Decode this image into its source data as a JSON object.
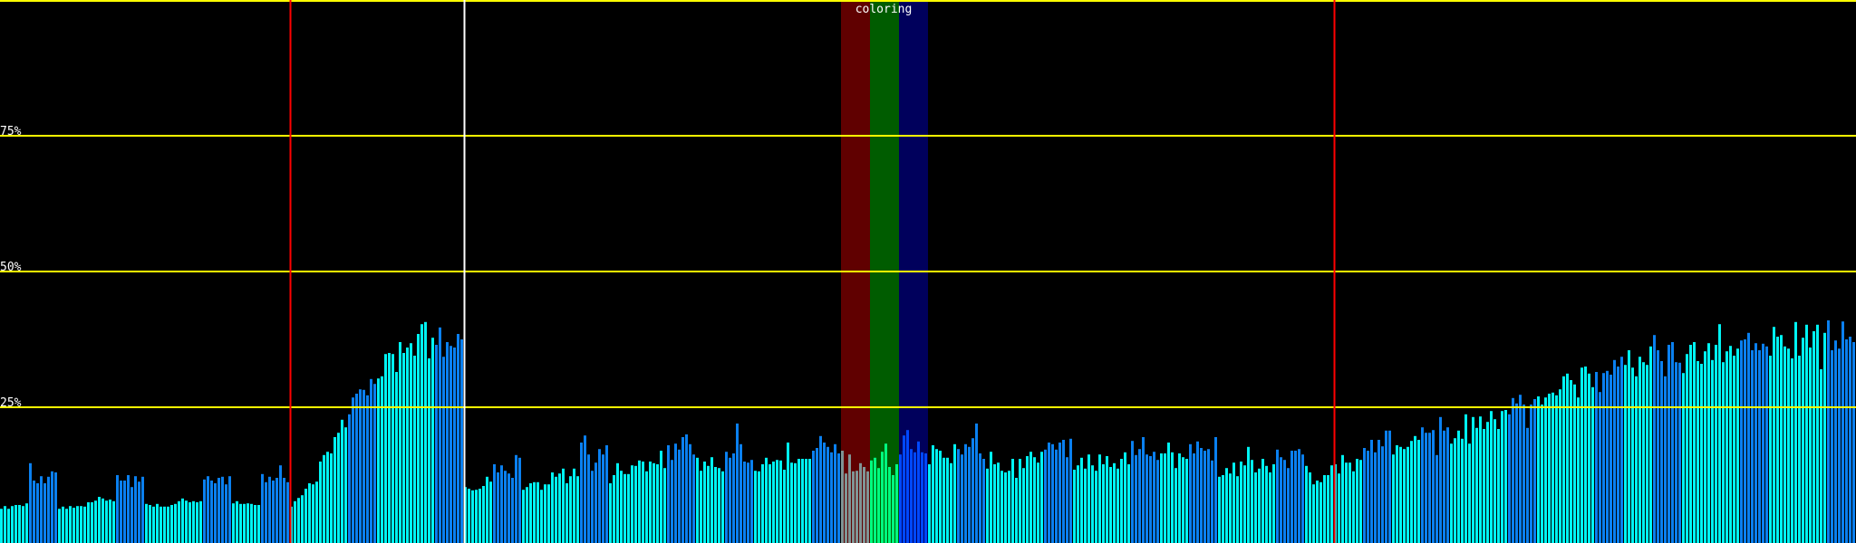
{
  "chart_data": {
    "type": "bar",
    "ylim": [
      0,
      100
    ],
    "y_tick_labels": [
      "25%",
      "50%",
      "75%"
    ],
    "y_ticks": [
      25,
      50,
      75
    ],
    "grid": true,
    "band_label": "coloring",
    "group_size": 8,
    "group_colors": "cbccbccbcbccbccbcbccbccbcbccbgGBcbccbccbcbccbccbcbccbccbcbccbccb",
    "palette": {
      "c": "#00f4f4",
      "b": "#0a80f0",
      "g": "#7f9595",
      "G": "#00ff80",
      "B": "#0048ff",
      "band_red": "#600000",
      "band_green": "#005c00",
      "band_blue": "#00005c",
      "grid": "#ffff00",
      "marker_red": "#ff0000",
      "marker_white": "#ffffff"
    },
    "values": [
      6.3,
      6.8,
      6.3,
      6.8,
      7.0,
      7.0,
      6.8,
      7.3,
      14.7,
      11.5,
      11.0,
      12.3,
      11.0,
      12.2,
      13.2,
      13.0,
      6.3,
      6.7,
      6.3,
      6.8,
      6.5,
      6.8,
      6.8,
      6.7,
      7.5,
      7.5,
      7.8,
      8.5,
      8.2,
      7.8,
      8.0,
      7.7,
      12.5,
      11.5,
      11.5,
      12.5,
      10.3,
      12.3,
      11.3,
      12.2,
      7.2,
      7.0,
      6.7,
      7.2,
      6.7,
      6.7,
      6.7,
      7.0,
      7.2,
      7.7,
      8.2,
      7.8,
      7.5,
      7.7,
      7.5,
      7.7,
      11.7,
      12.3,
      11.5,
      11.0,
      12.0,
      12.2,
      10.8,
      12.3,
      7.3,
      7.7,
      7.2,
      7.2,
      7.3,
      7.2,
      7.0,
      7.0,
      12.7,
      11.2,
      12.2,
      11.5,
      12.0,
      14.3,
      12.0,
      11.2,
      6.7,
      7.7,
      8.3,
      8.8,
      10.0,
      11.0,
      10.8,
      11.3,
      15.0,
      16.2,
      16.8,
      16.5,
      19.5,
      20.3,
      22.7,
      21.3,
      23.7,
      26.8,
      27.5,
      28.3,
      28.2,
      27.2,
      30.2,
      29.3,
      30.3,
      30.7,
      34.8,
      35.0,
      34.8,
      31.5,
      37.0,
      35.0,
      36.0,
      36.8,
      34.5,
      38.5,
      40.3,
      40.7,
      34.0,
      37.8,
      36.5,
      39.7,
      34.3,
      37.0,
      36.3,
      36.0,
      38.5,
      37.5,
      10.3,
      10.0,
      9.7,
      9.8,
      10.0,
      10.5,
      12.2,
      11.3,
      14.5,
      13.0,
      14.3,
      13.3,
      12.8,
      12.0,
      16.2,
      15.7,
      9.8,
      10.3,
      11.0,
      11.2,
      11.2,
      9.8,
      10.8,
      10.8,
      13.0,
      12.2,
      12.8,
      13.7,
      11.0,
      12.3,
      13.7,
      12.3,
      18.5,
      19.8,
      16.3,
      13.3,
      14.8,
      17.3,
      16.3,
      18.0,
      11.0,
      12.5,
      14.7,
      13.3,
      12.7,
      12.7,
      14.3,
      14.2,
      15.2,
      15.0,
      13.2,
      15.0,
      14.7,
      14.5,
      17.0,
      13.8,
      18.0,
      15.3,
      18.3,
      17.2,
      19.5,
      20.0,
      18.2,
      16.3,
      15.7,
      13.3,
      15.0,
      14.2,
      15.8,
      14.0,
      13.8,
      13.2,
      16.8,
      15.7,
      16.5,
      22.0,
      18.2,
      15.0,
      14.8,
      15.3,
      13.3,
      13.2,
      14.5,
      15.7,
      14.5,
      15.0,
      15.3,
      15.2,
      13.5,
      18.5,
      14.8,
      14.7,
      15.5,
      15.5,
      15.5,
      15.5,
      17.0,
      17.5,
      19.7,
      18.5,
      17.7,
      16.7,
      18.2,
      16.5,
      17.0,
      12.8,
      16.3,
      13.2,
      13.3,
      14.7,
      14.0,
      13.2,
      15.2,
      15.7,
      13.8,
      16.8,
      18.3,
      14.0,
      12.5,
      14.5,
      16.3,
      19.8,
      20.8,
      17.3,
      16.7,
      18.7,
      16.7,
      16.5,
      14.5,
      18.0,
      17.3,
      17.0,
      15.7,
      15.7,
      14.7,
      18.2,
      17.3,
      16.3,
      18.2,
      17.7,
      19.3,
      22.0,
      16.5,
      15.5,
      13.7,
      16.8,
      14.5,
      14.8,
      13.3,
      13.0,
      13.3,
      15.5,
      12.0,
      15.5,
      13.8,
      16.0,
      16.8,
      15.8,
      14.8,
      16.8,
      17.2,
      18.5,
      18.2,
      17.2,
      18.5,
      19.0,
      15.8,
      19.2,
      13.5,
      14.3,
      15.7,
      13.7,
      16.3,
      14.3,
      13.3,
      16.3,
      14.5,
      16.0,
      14.0,
      14.7,
      13.7,
      15.5,
      16.7,
      14.5,
      18.8,
      16.2,
      17.3,
      19.5,
      16.3,
      16.0,
      16.8,
      15.3,
      16.5,
      16.5,
      18.5,
      16.7,
      13.8,
      16.5,
      15.8,
      15.5,
      18.2,
      16.5,
      18.7,
      17.5,
      17.0,
      17.3,
      15.2,
      19.5,
      12.2,
      12.5,
      13.8,
      12.8,
      14.8,
      12.3,
      15.0,
      14.3,
      17.7,
      15.3,
      13.0,
      13.7,
      15.5,
      14.2,
      13.0,
      14.5,
      17.2,
      15.8,
      15.3,
      13.8,
      17.0,
      17.0,
      17.3,
      16.3,
      14.2,
      13.0,
      10.8,
      11.5,
      11.2,
      12.5,
      12.5,
      14.3,
      14.5,
      12.8,
      16.2,
      14.8,
      14.8,
      13.2,
      15.5,
      15.3,
      17.5,
      17.0,
      19.0,
      16.7,
      19.0,
      17.8,
      20.7,
      20.7,
      16.3,
      18.0,
      17.7,
      17.3,
      17.7,
      18.8,
      19.7,
      19.0,
      21.3,
      20.3,
      20.3,
      20.8,
      16.2,
      23.2,
      20.7,
      21.3,
      18.3,
      19.3,
      20.7,
      19.2,
      23.7,
      18.3,
      23.2,
      21.2,
      23.3,
      21.0,
      22.3,
      24.3,
      22.8,
      21.0,
      24.3,
      24.5,
      23.7,
      26.7,
      25.7,
      27.3,
      25.5,
      21.2,
      25.5,
      26.5,
      27.0,
      25.5,
      26.8,
      27.5,
      27.7,
      27.2,
      28.3,
      30.7,
      31.2,
      30.0,
      29.2,
      26.8,
      32.3,
      32.5,
      31.2,
      28.7,
      31.5,
      27.8,
      31.3,
      31.7,
      31.0,
      33.7,
      32.5,
      34.3,
      32.8,
      35.5,
      32.3,
      30.7,
      34.3,
      33.3,
      32.8,
      36.2,
      38.3,
      35.5,
      33.5,
      30.7,
      36.5,
      37.0,
      33.3,
      33.2,
      31.3,
      34.8,
      36.5,
      37.0,
      33.5,
      33.0,
      35.3,
      36.8,
      33.7,
      36.5,
      40.3,
      33.3,
      35.3,
      36.3,
      34.5,
      35.8,
      37.3,
      37.5,
      38.7,
      35.5,
      36.8,
      35.5,
      36.7,
      36.2,
      34.5,
      39.8,
      38.0,
      38.3,
      36.2,
      35.8,
      34.0,
      40.7,
      34.5,
      37.8,
      40.2,
      36.0,
      39.0,
      40.2,
      32.0,
      38.7,
      41.0,
      35.5,
      37.3,
      35.8,
      40.8,
      37.5,
      38.0,
      37.0
    ]
  }
}
